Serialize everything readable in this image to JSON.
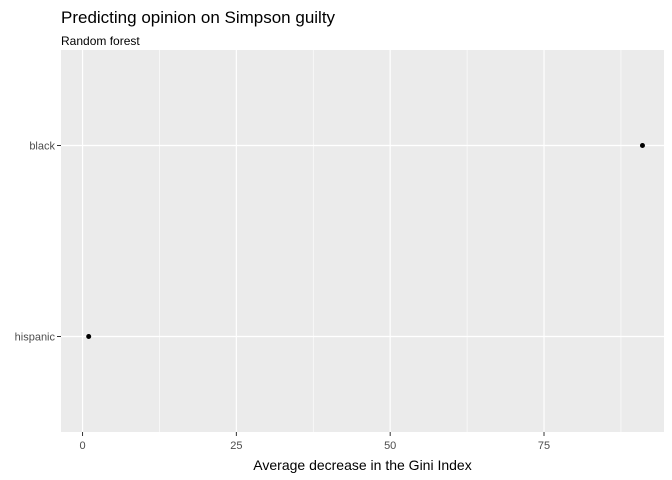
{
  "chart_data": {
    "type": "scatter",
    "title": "Predicting opinion on Simpson guilty",
    "subtitle": "Random forest",
    "xlabel": "Average decrease in the Gini Index",
    "ylabel": "",
    "xlim": [
      -3.5,
      94.5
    ],
    "xticks": [
      0,
      25,
      50,
      75
    ],
    "xtick_labels": [
      "0",
      "25",
      "50",
      "75"
    ],
    "categories": [
      "black",
      "hispanic"
    ],
    "points": [
      {
        "category": "black",
        "x": 91
      },
      {
        "category": "hispanic",
        "x": 1
      }
    ],
    "grid": true,
    "legend": "none",
    "colors": {
      "panel": "#ebebeb",
      "grid": "#ffffff",
      "point": "#000000",
      "tick_text": "#4d4d4d",
      "tick_mark": "#333333"
    }
  }
}
